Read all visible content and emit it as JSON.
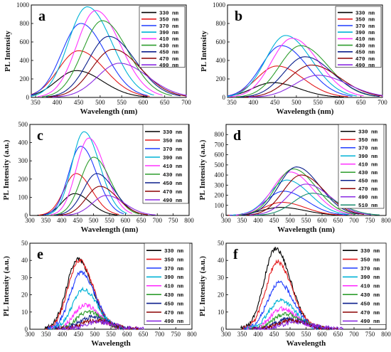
{
  "colors": [
    "#000000",
    "#e31a1c",
    "#1f3cff",
    "#00b3d6",
    "#ff33ff",
    "#2e9e2e",
    "#0b1f8c",
    "#8b0000",
    "#8a2be2",
    "#1a8c6e"
  ],
  "chart_data": [
    {
      "type": "line",
      "panel_label": "a",
      "xlabel": "Wavelength (nm)",
      "ylabel": "PL Intensity",
      "xlim": [
        340,
        700
      ],
      "ylim": [
        0,
        1000
      ],
      "xticks": [
        350,
        400,
        450,
        500,
        550,
        600,
        650,
        700
      ],
      "yticks": [
        0,
        200,
        400,
        600,
        800,
        1000
      ],
      "series": [
        {
          "name": "330 nm",
          "peak_x": 445,
          "peak_y": 290,
          "width": 55
        },
        {
          "name": "350 nm",
          "peak_x": 450,
          "peak_y": 505,
          "width": 55
        },
        {
          "name": "370 nm",
          "peak_x": 455,
          "peak_y": 800,
          "width": 52
        },
        {
          "name": "390 nm",
          "peak_x": 470,
          "peak_y": 980,
          "width": 52
        },
        {
          "name": "410 nm",
          "peak_x": 490,
          "peak_y": 940,
          "width": 52
        },
        {
          "name": "430 nm",
          "peak_x": 505,
          "peak_y": 830,
          "width": 54
        },
        {
          "name": "450 nm",
          "peak_x": 520,
          "peak_y": 660,
          "width": 56
        },
        {
          "name": "470 nm",
          "peak_x": 530,
          "peak_y": 520,
          "width": 58
        },
        {
          "name": "490 nm",
          "peak_x": 545,
          "peak_y": 370,
          "width": 60
        }
      ]
    },
    {
      "type": "line",
      "panel_label": "b",
      "xlabel": "Wavelength (nm)",
      "ylabel": "PL Intensity",
      "xlim": [
        340,
        700
      ],
      "ylim": [
        0,
        1000
      ],
      "xticks": [
        350,
        400,
        450,
        500,
        550,
        600,
        650,
        700
      ],
      "yticks": [
        0,
        200,
        400,
        600,
        800,
        1000
      ],
      "series": [
        {
          "name": "330 nm",
          "peak_x": 445,
          "peak_y": 160,
          "width": 55
        },
        {
          "name": "350 nm",
          "peak_x": 455,
          "peak_y": 340,
          "width": 55
        },
        {
          "name": "370 nm",
          "peak_x": 465,
          "peak_y": 560,
          "width": 55
        },
        {
          "name": "390 nm",
          "peak_x": 475,
          "peak_y": 670,
          "width": 55
        },
        {
          "name": "410 nm",
          "peak_x": 490,
          "peak_y": 640,
          "width": 56
        },
        {
          "name": "430 nm",
          "peak_x": 510,
          "peak_y": 560,
          "width": 58
        },
        {
          "name": "450 nm",
          "peak_x": 520,
          "peak_y": 440,
          "width": 58
        },
        {
          "name": "470 nm",
          "peak_x": 535,
          "peak_y": 350,
          "width": 60
        },
        {
          "name": "490 nm",
          "peak_x": 550,
          "peak_y": 240,
          "width": 62
        }
      ]
    },
    {
      "type": "line",
      "panel_label": "c",
      "xlabel": "Wavelength (nm)",
      "ylabel": "PL Intensity (a.u.)",
      "xlim": [
        300,
        800
      ],
      "ylim": [
        0,
        500
      ],
      "xticks": [
        300,
        350,
        400,
        450,
        500,
        550,
        600,
        650,
        700,
        750,
        800
      ],
      "yticks": [
        0,
        100,
        200,
        300,
        400,
        500
      ],
      "series": [
        {
          "name": "330 nm",
          "peak_x": 440,
          "peak_y": 120,
          "width": 45
        },
        {
          "name": "350 nm",
          "peak_x": 445,
          "peak_y": 230,
          "width": 45
        },
        {
          "name": "370 nm",
          "peak_x": 460,
          "peak_y": 380,
          "width": 45
        },
        {
          "name": "390 nm",
          "peak_x": 470,
          "peak_y": 460,
          "width": 45
        },
        {
          "name": "410 nm",
          "peak_x": 485,
          "peak_y": 425,
          "width": 46
        },
        {
          "name": "430 nm",
          "peak_x": 500,
          "peak_y": 320,
          "width": 48
        },
        {
          "name": "450 nm",
          "peak_x": 510,
          "peak_y": 230,
          "width": 50
        },
        {
          "name": "470 nm",
          "peak_x": 520,
          "peak_y": 160,
          "width": 50
        },
        {
          "name": "490 nm",
          "peak_x": 540,
          "peak_y": 110,
          "width": 52
        }
      ]
    },
    {
      "type": "line",
      "panel_label": "d",
      "xlabel": "Wavelength (nm)",
      "ylabel": "PL Intensity (a.u.)",
      "xlim": [
        300,
        800
      ],
      "ylim": [
        0,
        900
      ],
      "xticks": [
        300,
        350,
        400,
        450,
        500,
        550,
        600,
        650,
        700,
        750,
        800
      ],
      "yticks": [
        0,
        100,
        200,
        300,
        400,
        500,
        600,
        700,
        800
      ],
      "series": [
        {
          "name": "330 nm",
          "peak_x": 470,
          "peak_y": 80,
          "width": 70
        },
        {
          "name": "350 nm",
          "peak_x": 475,
          "peak_y": 130,
          "width": 65
        },
        {
          "name": "370 nm",
          "peak_x": 480,
          "peak_y": 240,
          "width": 65
        },
        {
          "name": "390 nm",
          "peak_x": 490,
          "peak_y": 350,
          "width": 65
        },
        {
          "name": "410 nm",
          "peak_x": 500,
          "peak_y": 430,
          "width": 65
        },
        {
          "name": "430 nm",
          "peak_x": 510,
          "peak_y": 460,
          "width": 65
        },
        {
          "name": "450 nm",
          "peak_x": 520,
          "peak_y": 480,
          "width": 66
        },
        {
          "name": "470 nm",
          "peak_x": 535,
          "peak_y": 400,
          "width": 66
        },
        {
          "name": "490 nm",
          "peak_x": 550,
          "peak_y": 310,
          "width": 68
        },
        {
          "name": "510 nm",
          "peak_x": 570,
          "peak_y": 220,
          "width": 70
        }
      ]
    },
    {
      "type": "line",
      "panel_label": "e",
      "xlabel": "Wavelength",
      "ylabel": "PL Intensity (a.u.)",
      "xlim": [
        300,
        800
      ],
      "ylim": [
        0,
        50
      ],
      "xticks": [
        300,
        350,
        400,
        450,
        500,
        550,
        600,
        650,
        700,
        750,
        800
      ],
      "yticks": [
        0,
        10,
        20,
        30,
        40,
        50
      ],
      "series": [
        {
          "name": "330 nm",
          "peak_x": 448,
          "peak_y": 41,
          "width": 40
        },
        {
          "name": "350 nm",
          "peak_x": 452,
          "peak_y": 40,
          "width": 40
        },
        {
          "name": "370 nm",
          "peak_x": 458,
          "peak_y": 33,
          "width": 40
        },
        {
          "name": "390 nm",
          "peak_x": 465,
          "peak_y": 23,
          "width": 40
        },
        {
          "name": "410 nm",
          "peak_x": 470,
          "peak_y": 14,
          "width": 40
        },
        {
          "name": "430 nm",
          "peak_x": 480,
          "peak_y": 10,
          "width": 42
        },
        {
          "name": "450 nm",
          "peak_x": 490,
          "peak_y": 7,
          "width": 44
        },
        {
          "name": "470 nm",
          "peak_x": 500,
          "peak_y": 5,
          "width": 46
        },
        {
          "name": "490 nm",
          "peak_x": 510,
          "peak_y": 4,
          "width": 48
        }
      ]
    },
    {
      "type": "line",
      "panel_label": "f",
      "xlabel": "Wavelength",
      "ylabel": "PL Intensity (a.u.)",
      "xlim": [
        300,
        800
      ],
      "ylim": [
        0,
        50
      ],
      "xticks": [
        300,
        350,
        400,
        450,
        500,
        550,
        600,
        650,
        700,
        750,
        800
      ],
      "yticks": [
        0,
        10,
        20,
        30,
        40,
        50
      ],
      "series": [
        {
          "name": "330 nm",
          "peak_x": 455,
          "peak_y": 47,
          "width": 42
        },
        {
          "name": "350 nm",
          "peak_x": 460,
          "peak_y": 39,
          "width": 42
        },
        {
          "name": "370 nm",
          "peak_x": 465,
          "peak_y": 27,
          "width": 42
        },
        {
          "name": "390 nm",
          "peak_x": 470,
          "peak_y": 17,
          "width": 42
        },
        {
          "name": "410 nm",
          "peak_x": 475,
          "peak_y": 12,
          "width": 42
        },
        {
          "name": "430 nm",
          "peak_x": 485,
          "peak_y": 9,
          "width": 44
        },
        {
          "name": "450 nm",
          "peak_x": 495,
          "peak_y": 6,
          "width": 46
        },
        {
          "name": "470 nm",
          "peak_x": 505,
          "peak_y": 5,
          "width": 48
        },
        {
          "name": "490 nm",
          "peak_x": 515,
          "peak_y": 4,
          "width": 50
        }
      ]
    }
  ]
}
